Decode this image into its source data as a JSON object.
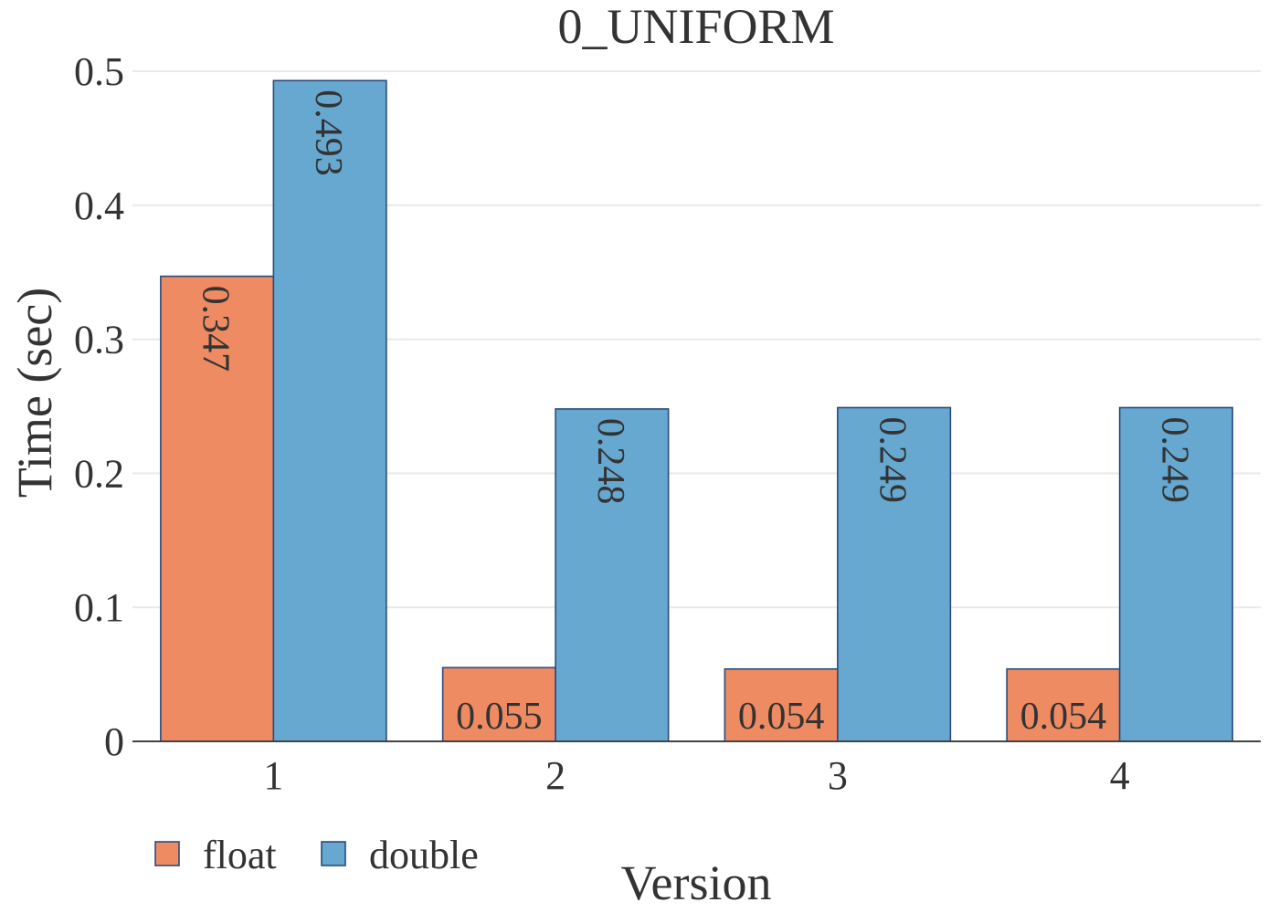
{
  "chart_data": {
    "type": "bar",
    "title": "0_UNIFORM",
    "xlabel": "Version",
    "ylabel": "Time (sec)",
    "categories": [
      "1",
      "2",
      "3",
      "4"
    ],
    "ylim": [
      0,
      0.5
    ],
    "yticks": [
      "0",
      "0.1",
      "0.2",
      "0.3",
      "0.4",
      "0.5"
    ],
    "series": [
      {
        "name": "float",
        "values": [
          0.347,
          0.055,
          0.054,
          0.054
        ],
        "labels": [
          "0.347",
          "0.055",
          "0.054",
          "0.054"
        ],
        "color": "#ef8b63"
      },
      {
        "name": "double",
        "values": [
          0.493,
          0.248,
          0.249,
          0.249
        ],
        "labels": [
          "0.493",
          "0.248",
          "0.249",
          "0.249"
        ],
        "color": "#67a8d0"
      }
    ],
    "grid": true,
    "legend": "bottom-left"
  }
}
